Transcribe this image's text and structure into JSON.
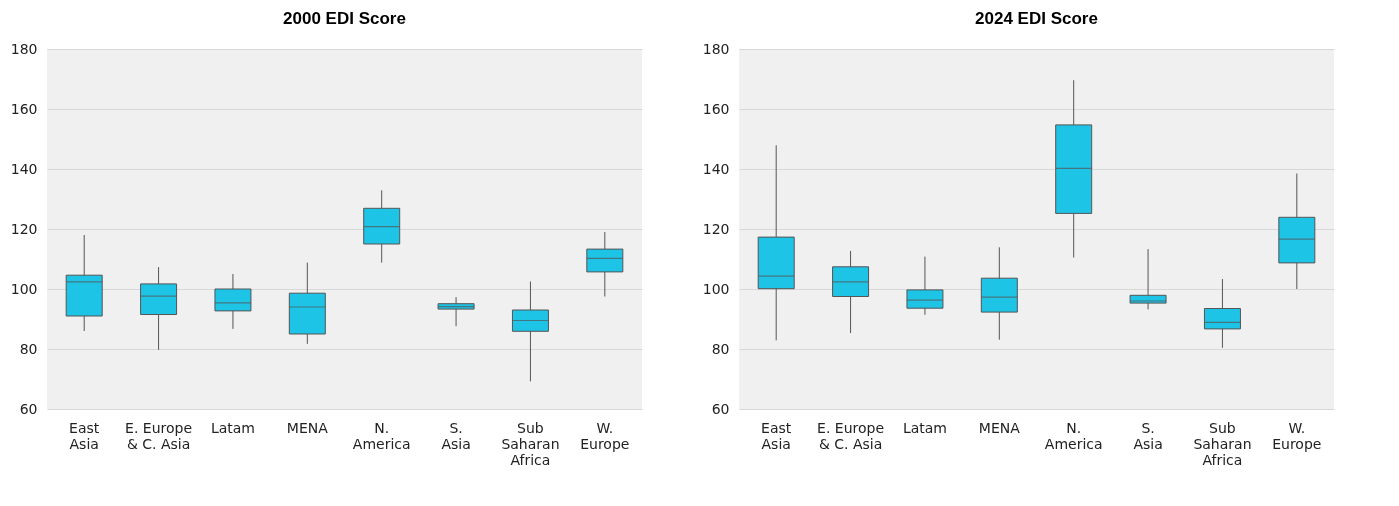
{
  "chart_data": [
    {
      "type": "box",
      "title": "2000 EDI Score",
      "categories": [
        "East\nAsia",
        "E. Europe\n& C. Asia",
        "Latam",
        "MENA",
        "N.\nAmerica",
        "S.\nAsia",
        "Sub\nSaharan\nAfrica",
        "W.\nEurope"
      ],
      "color": "#1dc4e6",
      "ylim": [
        60,
        180
      ],
      "yticks": [
        60,
        80,
        100,
        120,
        140,
        160,
        180
      ],
      "grid": "y",
      "boxes": [
        {
          "low": 86,
          "q1": 91,
          "median": 102.4,
          "q3": 104.6,
          "high": 118
        },
        {
          "low": 79.7,
          "q1": 91.5,
          "median": 97.6,
          "q3": 101.7,
          "high": 107.3
        },
        {
          "low": 86.7,
          "q1": 92.7,
          "median": 95.4,
          "q3": 100,
          "high": 105
        },
        {
          "low": 81.7,
          "q1": 85,
          "median": 94,
          "q3": 98.6,
          "high": 108.8
        },
        {
          "low": 108.8,
          "q1": 115,
          "median": 120.8,
          "q3": 126.9,
          "high": 132.9
        },
        {
          "low": 87.6,
          "q1": 93.3,
          "median": 94.1,
          "q3": 95.1,
          "high": 97.3
        },
        {
          "low": 69.2,
          "q1": 85.9,
          "median": 89.5,
          "q3": 93,
          "high": 102.5
        },
        {
          "low": 97.5,
          "q1": 105.7,
          "median": 110.2,
          "q3": 113.3,
          "high": 119
        }
      ]
    },
    {
      "type": "box",
      "title": "2024 EDI Score",
      "categories": [
        "East\nAsia",
        "E. Europe\n& C. Asia",
        "Latam",
        "MENA",
        "N.\nAmerica",
        "S.\nAsia",
        "Sub\nSaharan\nAfrica",
        "W.\nEurope"
      ],
      "color": "#1dc4e6",
      "ylim": [
        60,
        180
      ],
      "yticks": [
        60,
        80,
        100,
        120,
        140,
        160,
        180
      ],
      "grid": "y",
      "boxes": [
        {
          "low": 82.9,
          "q1": 100.1,
          "median": 104.3,
          "q3": 117.3,
          "high": 147.9
        },
        {
          "low": 85.3,
          "q1": 97.5,
          "median": 102.4,
          "q3": 107.4,
          "high": 112.7
        },
        {
          "low": 91.4,
          "q1": 93.6,
          "median": 96.3,
          "q3": 99.7,
          "high": 110.8
        },
        {
          "low": 83.1,
          "q1": 92.3,
          "median": 97.3,
          "q3": 103.6,
          "high": 113.9
        },
        {
          "low": 110.5,
          "q1": 125.2,
          "median": 140.2,
          "q3": 154.7,
          "high": 169.6
        },
        {
          "low": 93.2,
          "q1": 95.3,
          "median": 96,
          "q3": 97.9,
          "high": 113.3
        },
        {
          "low": 80.4,
          "q1": 86.7,
          "median": 88.9,
          "q3": 93.5,
          "high": 103.3
        },
        {
          "low": 100,
          "q1": 108.7,
          "median": 116.6,
          "q3": 123.9,
          "high": 138.5
        }
      ]
    }
  ]
}
